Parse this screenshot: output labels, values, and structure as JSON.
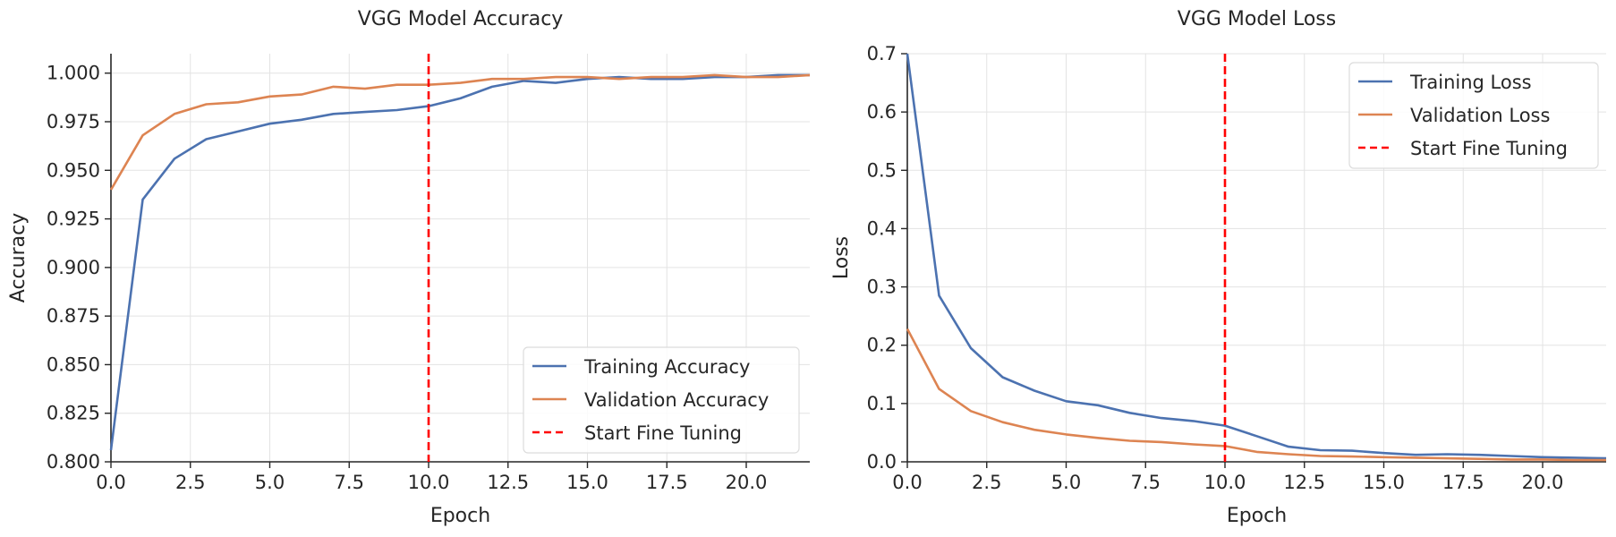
{
  "chart_data": [
    {
      "type": "line",
      "title": "VGG Model Accuracy",
      "xlabel": "Epoch",
      "ylabel": "Accuracy",
      "xlim": [
        0,
        22
      ],
      "ylim": [
        0.8,
        1.01
      ],
      "xticks": [
        0,
        2.5,
        5,
        7.5,
        10,
        12.5,
        15,
        17.5,
        20
      ],
      "xtick_labels": [
        "0.0",
        "2.5",
        "5.0",
        "7.5",
        "10.0",
        "12.5",
        "15.0",
        "17.5",
        "20.0"
      ],
      "yticks": [
        0.8,
        0.825,
        0.85,
        0.875,
        0.9,
        0.925,
        0.95,
        0.975,
        1.0
      ],
      "ytick_labels": [
        "0.800",
        "0.825",
        "0.850",
        "0.875",
        "0.900",
        "0.925",
        "0.950",
        "0.975",
        "1.000"
      ],
      "grid": true,
      "legend": "bottom-right",
      "x": [
        0,
        1,
        2,
        3,
        4,
        5,
        6,
        7,
        8,
        9,
        10,
        11,
        12,
        13,
        14,
        15,
        16,
        17,
        18,
        19,
        20,
        21,
        22
      ],
      "series": [
        {
          "name": "Training Accuracy",
          "color": "#4c72b0",
          "values": [
            0.806,
            0.935,
            0.956,
            0.966,
            0.97,
            0.974,
            0.976,
            0.979,
            0.98,
            0.981,
            0.983,
            0.987,
            0.993,
            0.996,
            0.995,
            0.997,
            0.998,
            0.997,
            0.997,
            0.998,
            0.998,
            0.999,
            0.999
          ]
        },
        {
          "name": "Validation Accuracy",
          "color": "#dd8452",
          "values": [
            0.94,
            0.968,
            0.979,
            0.984,
            0.985,
            0.988,
            0.989,
            0.993,
            0.992,
            0.994,
            0.994,
            0.995,
            0.997,
            0.997,
            0.998,
            0.998,
            0.997,
            0.998,
            0.998,
            0.999,
            0.998,
            0.998,
            0.999
          ]
        }
      ],
      "vline": {
        "x": 10,
        "name": "Start Fine Tuning",
        "color": "#ff0000"
      }
    },
    {
      "type": "line",
      "title": "VGG Model Loss",
      "xlabel": "Epoch",
      "ylabel": "Loss",
      "xlim": [
        0,
        22
      ],
      "ylim": [
        0,
        0.7
      ],
      "xticks": [
        0,
        2.5,
        5,
        7.5,
        10,
        12.5,
        15,
        17.5,
        20
      ],
      "xtick_labels": [
        "0.0",
        "2.5",
        "5.0",
        "7.5",
        "10.0",
        "12.5",
        "15.0",
        "17.5",
        "20.0"
      ],
      "yticks": [
        0,
        0.1,
        0.2,
        0.3,
        0.4,
        0.5,
        0.6,
        0.7
      ],
      "ytick_labels": [
        "0.0",
        "0.1",
        "0.2",
        "0.3",
        "0.4",
        "0.5",
        "0.6",
        "0.7"
      ],
      "grid": true,
      "legend": "top-right",
      "x": [
        0,
        1,
        2,
        3,
        4,
        5,
        6,
        7,
        8,
        9,
        10,
        11,
        12,
        13,
        14,
        15,
        16,
        17,
        18,
        19,
        20,
        21,
        22
      ],
      "series": [
        {
          "name": "Training Loss",
          "color": "#4c72b0",
          "values": [
            0.7,
            0.285,
            0.195,
            0.145,
            0.122,
            0.104,
            0.097,
            0.084,
            0.075,
            0.07,
            0.062,
            0.044,
            0.026,
            0.02,
            0.019,
            0.015,
            0.012,
            0.013,
            0.012,
            0.01,
            0.008,
            0.007,
            0.006
          ]
        },
        {
          "name": "Validation Loss",
          "color": "#dd8452",
          "values": [
            0.228,
            0.125,
            0.087,
            0.068,
            0.055,
            0.047,
            0.041,
            0.036,
            0.034,
            0.03,
            0.027,
            0.017,
            0.013,
            0.01,
            0.009,
            0.008,
            0.007,
            0.006,
            0.005,
            0.004,
            0.004,
            0.003,
            0.003
          ]
        }
      ],
      "vline": {
        "x": 10,
        "name": "Start Fine Tuning",
        "color": "#ff0000"
      }
    }
  ]
}
